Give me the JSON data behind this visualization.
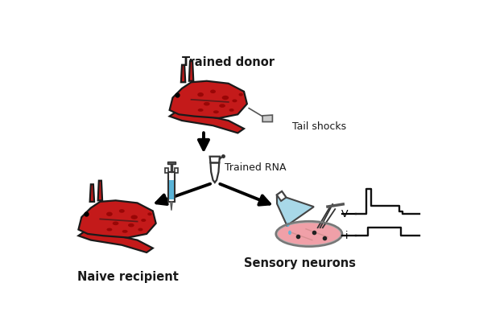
{
  "background_color": "#ffffff",
  "snail_body_color": "#c41a1a",
  "snail_outline_color": "#1a1a1a",
  "snail_spot_color": "#8b0000",
  "text_color": "#1a1a1a",
  "labels": {
    "trained_donor": "Trained donor",
    "tail_shocks": "Tail shocks",
    "trained_rna": "Trained RNA",
    "naive_recipient": "Naive recipient",
    "sensory_neurons": "Sensory neurons"
  },
  "label_fontsize": 10.5,
  "label_fontweight": "bold",
  "small_fontsize": 9,
  "syringe_liquid_color": "#5ab4d8",
  "flask_liquid_color": "#a8d8e8",
  "petri_liquid_color": "#f0a0a8",
  "drop_color": "#5ab4d8",
  "trace_color": "#111111",
  "lw": 1.6
}
